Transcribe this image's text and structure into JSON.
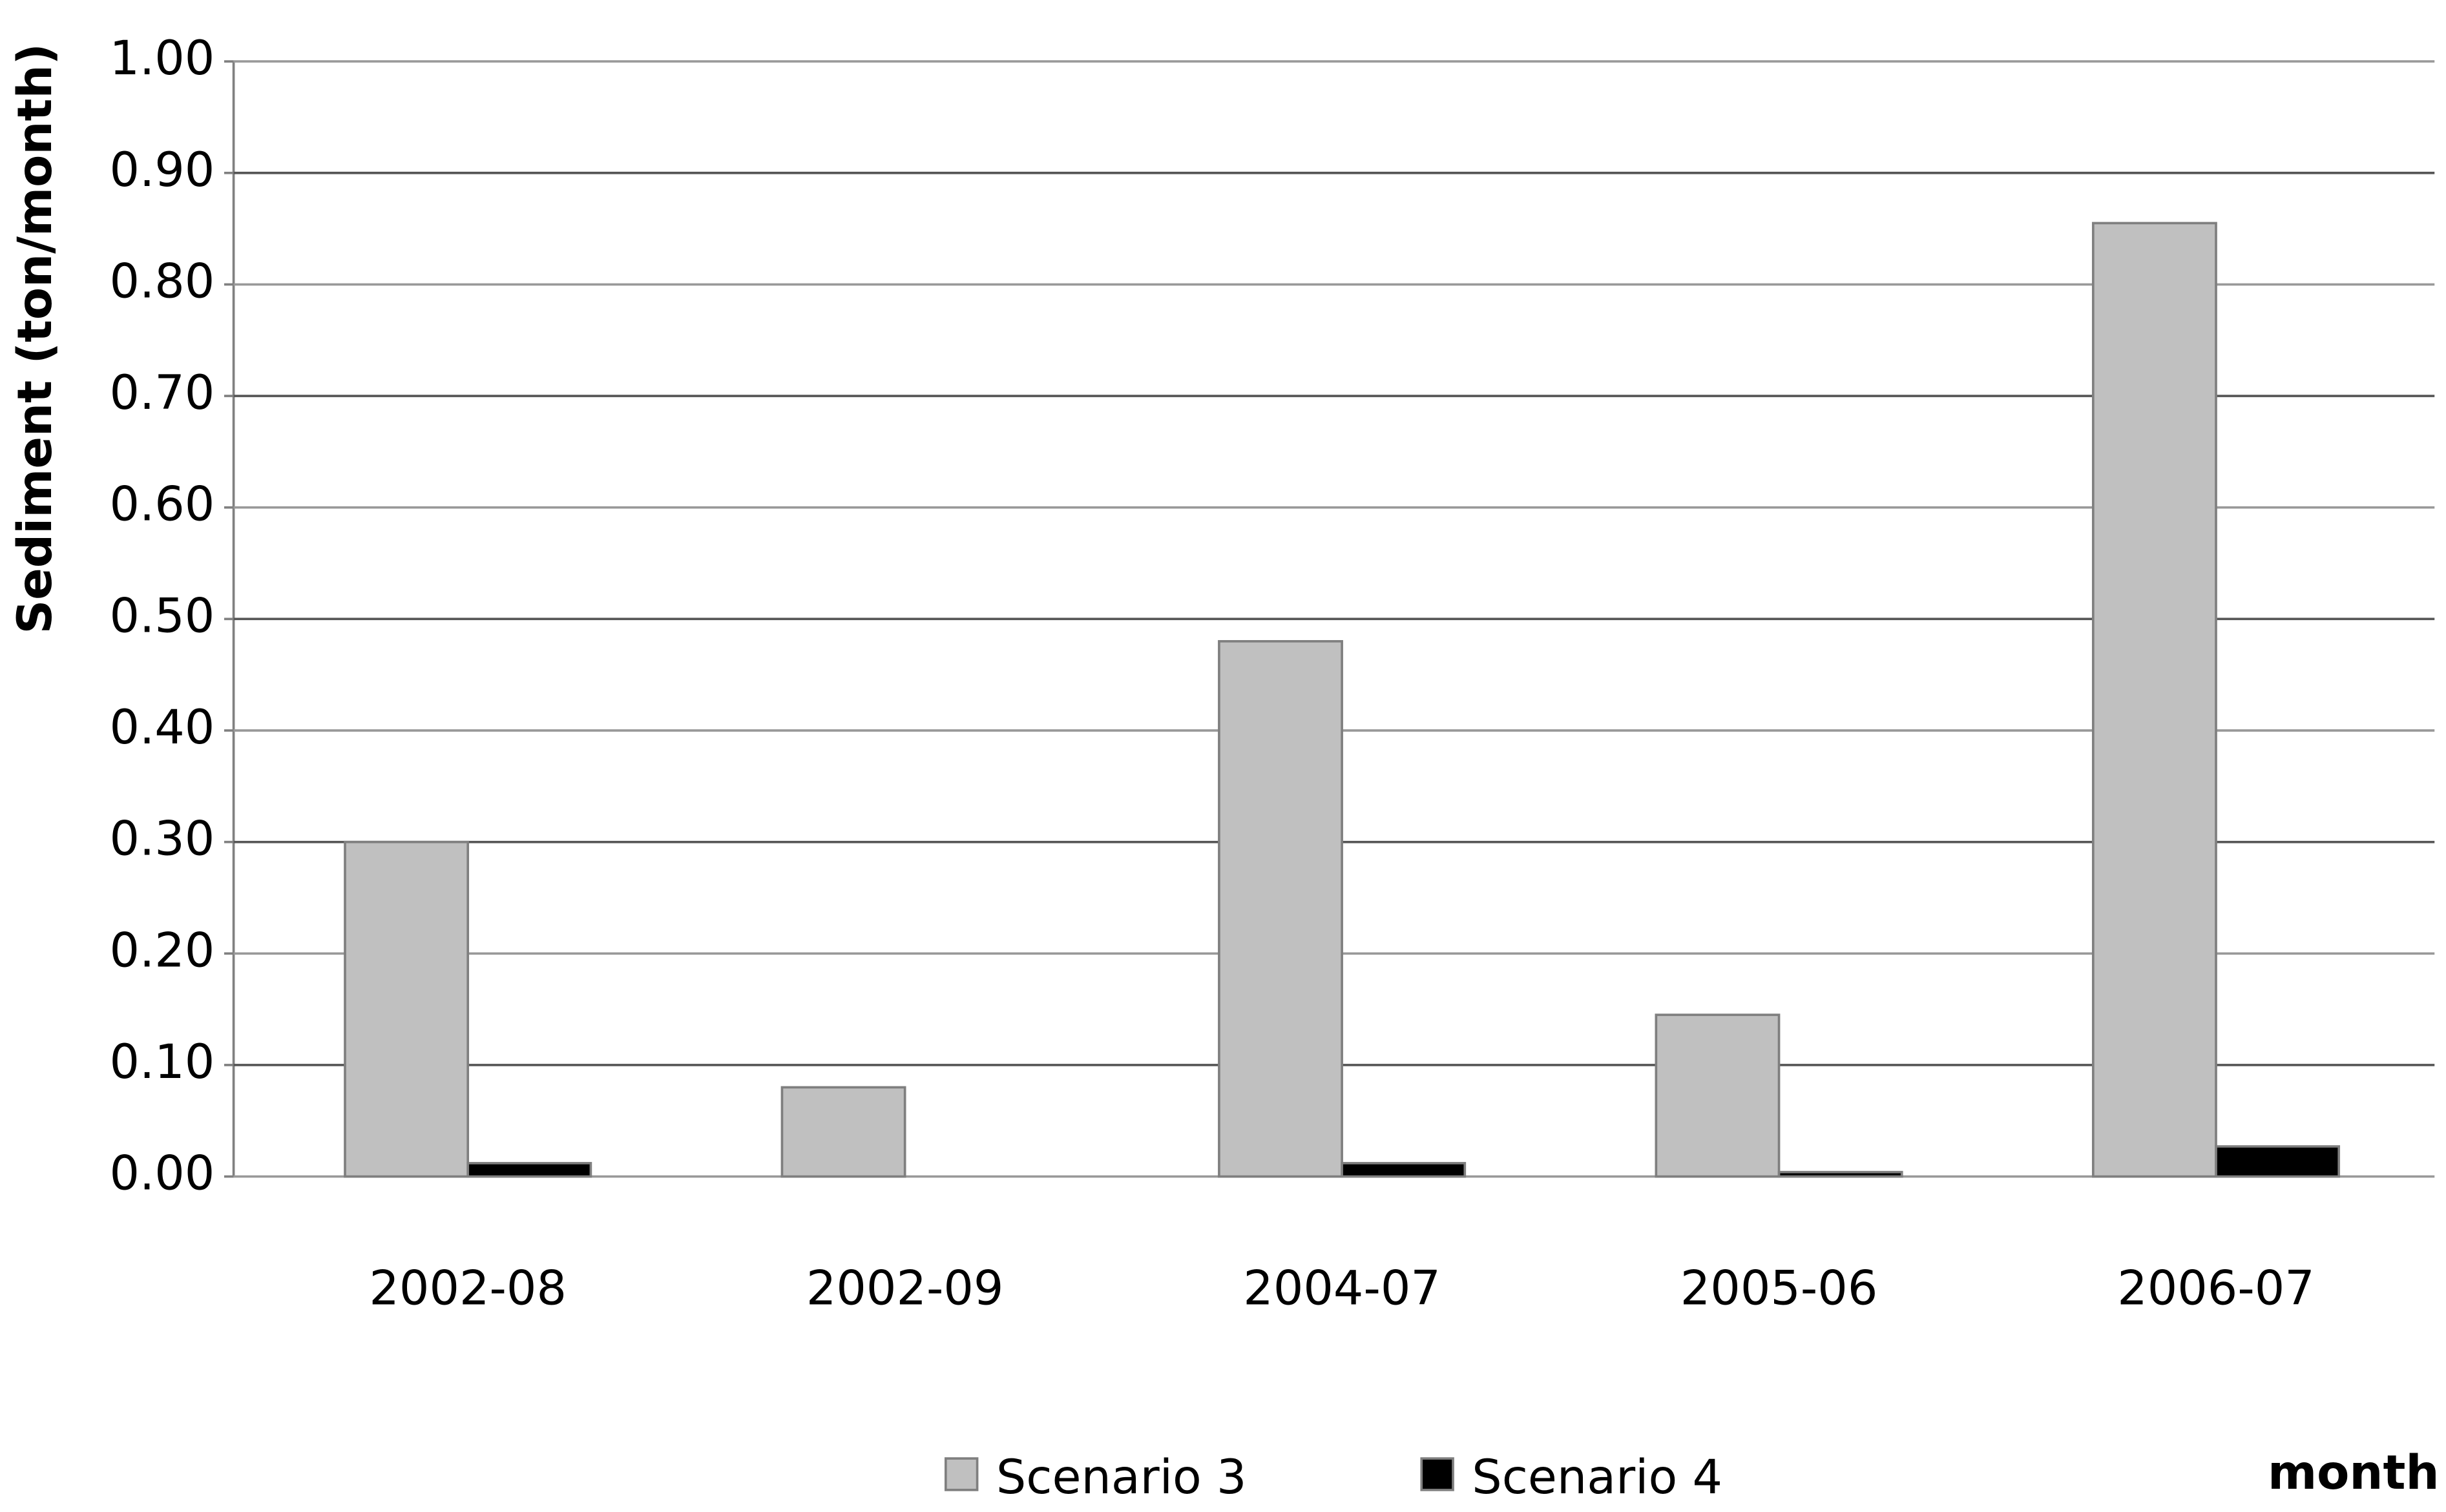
{
  "chart_data": {
    "type": "bar",
    "y_label": "Sediment (ton/month)",
    "x_label": "month",
    "categories": [
      "2002-08",
      "2002-09",
      "2004-07",
      "2005-06",
      "2006-07"
    ],
    "series": [
      {
        "name": "Scenario 3",
        "color": "#c0c0c0",
        "values": [
          0.3,
          0.08,
          0.48,
          0.145,
          0.855
        ]
      },
      {
        "name": "Scenario 4",
        "color": "#000000",
        "values": [
          0.012,
          0,
          0.012,
          0.004,
          0.027
        ]
      }
    ],
    "ylim": [
      0,
      1
    ],
    "yticks": [
      {
        "value": 0,
        "label": "0.00"
      },
      {
        "value": 0.1,
        "label": "0.10"
      },
      {
        "value": 0.2,
        "label": "0.20"
      },
      {
        "value": 0.3,
        "label": "0.30"
      },
      {
        "value": 0.4,
        "label": "0.40"
      },
      {
        "value": 0.5,
        "label": "0.50"
      },
      {
        "value": 0.6,
        "label": "0.60"
      },
      {
        "value": 0.7,
        "label": "0.70"
      },
      {
        "value": 0.8,
        "label": "0.80"
      },
      {
        "value": 0.9,
        "label": "0.90"
      },
      {
        "value": 1,
        "label": "1.00"
      }
    ],
    "grid": true
  }
}
